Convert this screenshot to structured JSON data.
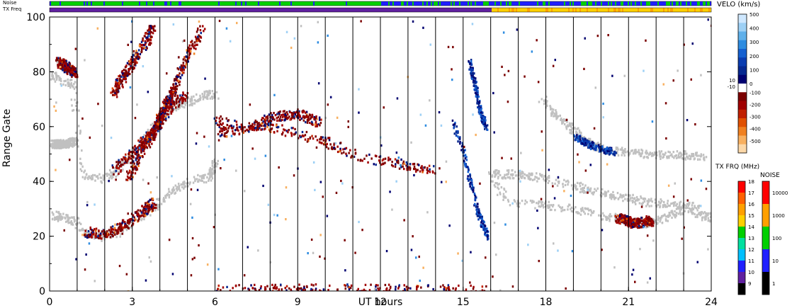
{
  "chart_data": {
    "type": "heatmap",
    "xlabel": "UT hours",
    "ylabel": "Range Gate",
    "xlim": [
      0,
      24
    ],
    "ylim": [
      0,
      100
    ],
    "xticks": [
      "0",
      "3",
      "6",
      "9",
      "12",
      "15",
      "18",
      "21",
      "24"
    ],
    "yticks": [
      "0",
      "20",
      "40",
      "60",
      "80",
      "100"
    ],
    "top_bars": {
      "noise_label": "Noise",
      "txfreq_label": "TX Freq",
      "noise_switch_hour": 12.0,
      "txfreq_switch_hour": 16.0
    },
    "velocity_colorbar": {
      "title": "VELO (km/s)",
      "ticks": [
        "500",
        "400",
        "300",
        "200",
        "100",
        "0",
        "-100",
        "-200",
        "-300",
        "-400",
        "-500"
      ],
      "gap_labels": [
        "10",
        "-10"
      ],
      "colors": [
        "#cfe8ff",
        "#9dd0f5",
        "#5fb0ea",
        "#2e8ce0",
        "#1560d0",
        "#0a3cb0",
        "#062890",
        "#000070",
        "#ffffff",
        "#7a0000",
        "#a00000",
        "#c02000",
        "#e05000",
        "#f08020",
        "#f8b060",
        "#fcd8a8"
      ]
    },
    "txfreq_colorbar": {
      "title": "TX FRQ (MHz)",
      "ticks": [
        "18",
        "17",
        "16",
        "15",
        "14",
        "13",
        "12",
        "11",
        "10",
        "9"
      ],
      "colors": [
        "#ff0000",
        "#ff6000",
        "#ffa000",
        "#ffd000",
        "#00d000",
        "#00e0a0",
        "#00c0ff",
        "#2020ff",
        "#6020a0",
        "#000000"
      ]
    },
    "noise_colorbar": {
      "title": "NOISE",
      "ticks": [
        "10000",
        "1000",
        "100",
        "10",
        "1"
      ],
      "colors": [
        "#ff0000",
        "#ffa000",
        "#00d000",
        "#2020ff",
        "#000000"
      ]
    },
    "ground_scatter_color": "#c0c0c0",
    "scan_boundaries_hours": [
      1,
      2,
      3,
      4,
      5,
      6,
      7,
      8,
      9,
      10,
      11,
      12,
      13,
      14,
      15,
      16,
      17,
      18,
      19,
      20,
      21,
      22,
      23
    ],
    "series": [
      {
        "kind": "ground",
        "points": [
          [
            0.1,
            28
          ],
          [
            0.5,
            27
          ],
          [
            0.9,
            26
          ],
          [
            1.2,
            22
          ],
          [
            1.8,
            20
          ],
          [
            2.5,
            22
          ],
          [
            3.2,
            27
          ],
          [
            3.8,
            31
          ],
          [
            4.3,
            36
          ],
          [
            4.8,
            39
          ],
          [
            5.3,
            41
          ],
          [
            5.8,
            42
          ],
          [
            6.0,
            48
          ]
        ]
      },
      {
        "kind": "ground",
        "points": [
          [
            0.1,
            79
          ],
          [
            0.4,
            77
          ],
          [
            0.8,
            76
          ],
          [
            1.2,
            43
          ],
          [
            1.9,
            41
          ],
          [
            2.4,
            44
          ],
          [
            2.8,
            48
          ],
          [
            3.2,
            53
          ],
          [
            3.6,
            58
          ],
          [
            4.0,
            64
          ],
          [
            4.4,
            67
          ],
          [
            4.8,
            69
          ],
          [
            5.2,
            70
          ],
          [
            5.7,
            72
          ],
          [
            6.0,
            72
          ]
        ]
      },
      {
        "kind": "ground",
        "points": [
          [
            0.1,
            54
          ],
          [
            0.5,
            54
          ],
          [
            0.9,
            55
          ]
        ]
      },
      {
        "kind": "ground",
        "points": [
          [
            16.0,
            40
          ],
          [
            16.7,
            33
          ],
          [
            17.5,
            32
          ],
          [
            18.5,
            31
          ],
          [
            19.5,
            29
          ],
          [
            20.5,
            27
          ],
          [
            21.0,
            26
          ],
          [
            21.6,
            25
          ],
          [
            22.3,
            27
          ],
          [
            23.0,
            30
          ],
          [
            23.6,
            28
          ],
          [
            24.0,
            27
          ]
        ]
      },
      {
        "kind": "ground",
        "points": [
          [
            16.0,
            43
          ],
          [
            16.8,
            43
          ],
          [
            17.6,
            42
          ],
          [
            18.6,
            40
          ],
          [
            19.6,
            37
          ],
          [
            20.6,
            35
          ],
          [
            21.5,
            33
          ],
          [
            22.5,
            32
          ],
          [
            23.5,
            31
          ]
        ]
      },
      {
        "kind": "ground",
        "points": [
          [
            17.8,
            71
          ],
          [
            18.4,
            64
          ],
          [
            19.0,
            59
          ],
          [
            19.5,
            55
          ],
          [
            20.0,
            52
          ],
          [
            21.0,
            51
          ],
          [
            22.0,
            50
          ],
          [
            23.0,
            50
          ],
          [
            23.8,
            49
          ]
        ]
      },
      {
        "kind": "neg",
        "points": [
          [
            6.0,
            62
          ],
          [
            7.0,
            61
          ],
          [
            8.0,
            60
          ],
          [
            9.0,
            58
          ],
          [
            10.0,
            55
          ],
          [
            11.0,
            50
          ],
          [
            12.0,
            48
          ],
          [
            13.0,
            46
          ],
          [
            14.0,
            44
          ]
        ]
      },
      {
        "kind": "neg",
        "points": [
          [
            6.1,
            58
          ],
          [
            7.2,
            60
          ],
          [
            8.2,
            64
          ],
          [
            9.0,
            65
          ],
          [
            9.8,
            62
          ]
        ]
      },
      {
        "kind": "neg",
        "points": [
          [
            1.3,
            22
          ],
          [
            2.0,
            21
          ],
          [
            2.6,
            24
          ],
          [
            3.2,
            28
          ],
          [
            3.8,
            33
          ]
        ]
      },
      {
        "kind": "neg",
        "points": [
          [
            2.3,
            44
          ],
          [
            2.9,
            50
          ],
          [
            3.4,
            55
          ],
          [
            3.9,
            61
          ],
          [
            4.4,
            68
          ],
          [
            4.9,
            72
          ]
        ]
      },
      {
        "kind": "neg",
        "points": [
          [
            2.8,
            42
          ],
          [
            3.3,
            51
          ],
          [
            3.7,
            58
          ],
          [
            4.1,
            66
          ],
          [
            4.5,
            73
          ]
        ]
      },
      {
        "kind": "neg",
        "points": [
          [
            3.6,
            55
          ],
          [
            4.0,
            64
          ],
          [
            4.5,
            75
          ],
          [
            5.0,
            86
          ],
          [
            5.5,
            96
          ]
        ]
      },
      {
        "kind": "neg",
        "points": [
          [
            2.3,
            72
          ],
          [
            2.6,
            78
          ],
          [
            3.0,
            84
          ],
          [
            3.4,
            90
          ],
          [
            3.7,
            96
          ]
        ]
      },
      {
        "kind": "neg",
        "points": [
          [
            0.3,
            84
          ],
          [
            0.6,
            82
          ],
          [
            0.9,
            80
          ]
        ]
      },
      {
        "kind": "neg",
        "points": [
          [
            6.0,
            0.8
          ],
          [
            8.0,
            1.0
          ],
          [
            10.0,
            1.2
          ],
          [
            12.0,
            1.0
          ],
          [
            14.0,
            0.8
          ],
          [
            16.0,
            0.7
          ]
        ]
      },
      {
        "kind": "neg",
        "points": [
          [
            20.6,
            27
          ],
          [
            21.2,
            25
          ],
          [
            21.8,
            26
          ]
        ]
      },
      {
        "kind": "pos",
        "points": [
          [
            14.6,
            62
          ],
          [
            14.9,
            54
          ],
          [
            15.1,
            46
          ],
          [
            15.3,
            38
          ],
          [
            15.5,
            30
          ],
          [
            15.7,
            24
          ],
          [
            15.9,
            20
          ]
        ]
      },
      {
        "kind": "pos",
        "points": [
          [
            15.2,
            84
          ],
          [
            15.4,
            76
          ],
          [
            15.6,
            66
          ],
          [
            15.8,
            60
          ]
        ]
      },
      {
        "kind": "pos",
        "points": [
          [
            19.0,
            57
          ],
          [
            19.5,
            54
          ],
          [
            20.0,
            52
          ],
          [
            20.5,
            51
          ]
        ]
      }
    ]
  }
}
